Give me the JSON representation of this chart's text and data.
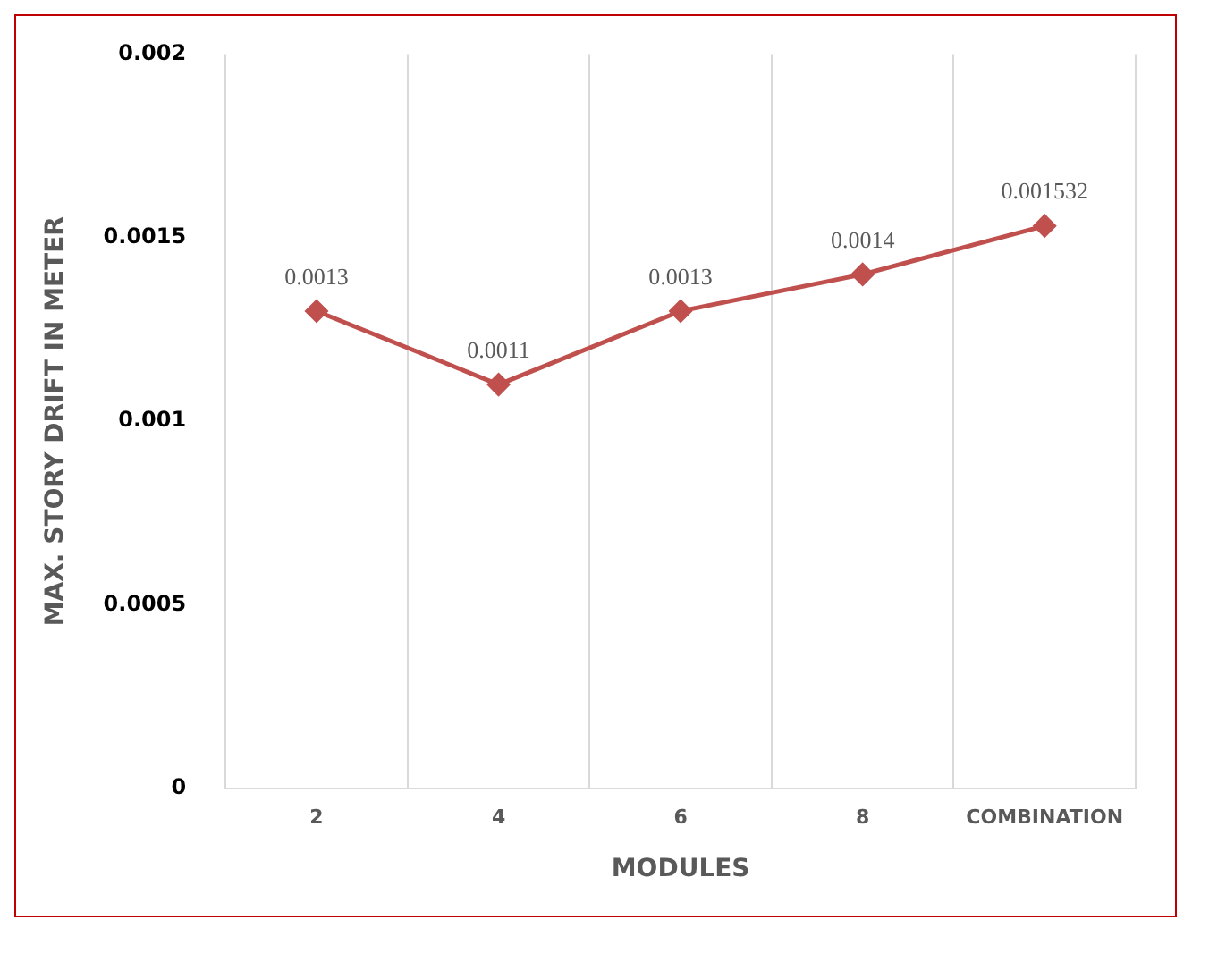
{
  "chart_data": {
    "type": "line",
    "xlabel": "MODULES",
    "ylabel": "MAX. STORY DRIFT IN METER",
    "categories": [
      "2",
      "4",
      "6",
      "8",
      "COMBINATION"
    ],
    "series": [
      {
        "color": "#c0504d",
        "values": [
          0.0013,
          0.0011,
          0.0013,
          0.0014,
          0.001532
        ]
      }
    ],
    "data_labels": true,
    "ylim": [
      0,
      0.002
    ],
    "yticks": [
      0,
      0.0005,
      0.001,
      0.0015,
      0.002
    ],
    "grid": "x",
    "legend": false,
    "marker": "diamond",
    "line_style": "solid"
  }
}
